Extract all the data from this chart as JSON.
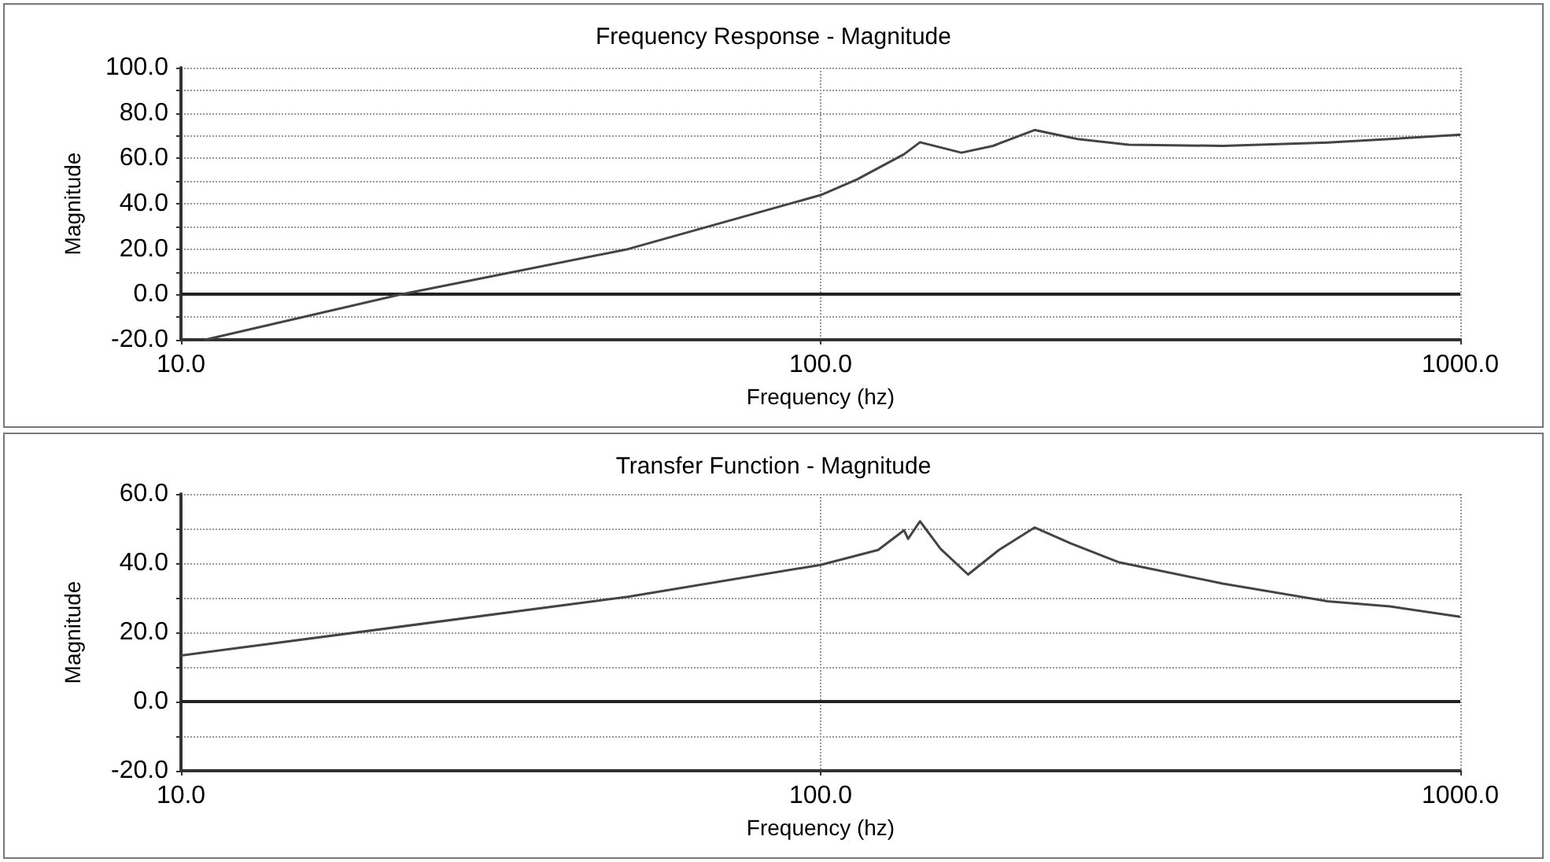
{
  "chart_data": [
    {
      "type": "line",
      "title": "Frequency Response - Magnitude",
      "xlabel": "Frequency (hz)",
      "ylabel": "Magnitude",
      "log": "x",
      "grid": true,
      "marker": "none",
      "line_style": "solid",
      "x": [
        10.9,
        22.1,
        50,
        100,
        114,
        135,
        143,
        166,
        186,
        216,
        252,
        303,
        425,
        620,
        776,
        1000
      ],
      "series": [
        {
          "color": "#444444",
          "values": [
            -20,
            0,
            20,
            43.8,
            50.7,
            61.8,
            67.1,
            62.5,
            65.5,
            72.5,
            68.5,
            66,
            65.5,
            67,
            68.5,
            70.4
          ]
        }
      ],
      "xlim": [
        10,
        1000
      ],
      "xticks": [
        {
          "value": 10,
          "label": "10.0"
        },
        {
          "value": 100,
          "label": "100.0"
        },
        {
          "value": 1000,
          "label": "1000.0"
        }
      ],
      "ylim": [
        -20,
        100
      ],
      "yticks": [
        {
          "value": -20,
          "label": "-20.0"
        },
        {
          "value": -10,
          "label": null
        },
        {
          "value": 0,
          "label": "0.0"
        },
        {
          "value": 10,
          "label": null
        },
        {
          "value": 20,
          "label": "20.0"
        },
        {
          "value": 30,
          "label": null
        },
        {
          "value": 40,
          "label": "40.0"
        },
        {
          "value": 50,
          "label": null
        },
        {
          "value": 60,
          "label": "60.0"
        },
        {
          "value": 70,
          "label": null
        },
        {
          "value": 80,
          "label": "80.0"
        },
        {
          "value": 90,
          "label": null
        },
        {
          "value": 100,
          "label": "100.0"
        }
      ],
      "ref_lines": [
        {
          "axis": "y",
          "value": 0,
          "color": "#222222",
          "line_style": "solid"
        }
      ]
    },
    {
      "type": "line",
      "title": "Transfer Function - Magnitude",
      "xlabel": "Frequency (hz)",
      "ylabel": "Magnitude",
      "log": "x",
      "grid": true,
      "marker": "none",
      "line_style": "solid",
      "x": [
        10,
        50,
        100,
        123,
        135,
        137,
        143,
        154,
        170,
        190,
        216,
        246,
        292,
        425,
        620,
        776,
        1000
      ],
      "series": [
        {
          "color": "#444444",
          "values": [
            13.3,
            30.3,
            39.5,
            43.8,
            49.5,
            47,
            52.1,
            44.1,
            36.7,
            43.8,
            50.3,
            45.7,
            40.3,
            34.1,
            29,
            27.5,
            24.5
          ]
        }
      ],
      "xlim": [
        10,
        1000
      ],
      "xticks": [
        {
          "value": 10,
          "label": "10.0"
        },
        {
          "value": 100,
          "label": "100.0"
        },
        {
          "value": 1000,
          "label": "1000.0"
        }
      ],
      "ylim": [
        -20,
        60
      ],
      "yticks": [
        {
          "value": -20,
          "label": "-20.0"
        },
        {
          "value": -10,
          "label": null
        },
        {
          "value": 0,
          "label": "0.0"
        },
        {
          "value": 10,
          "label": null
        },
        {
          "value": 20,
          "label": "20.0"
        },
        {
          "value": 30,
          "label": null
        },
        {
          "value": 40,
          "label": "40.0"
        },
        {
          "value": 50,
          "label": null
        },
        {
          "value": 60,
          "label": "60.0"
        }
      ],
      "ref_lines": [
        {
          "axis": "y",
          "value": 0,
          "color": "#222222",
          "line_style": "solid"
        }
      ]
    }
  ]
}
